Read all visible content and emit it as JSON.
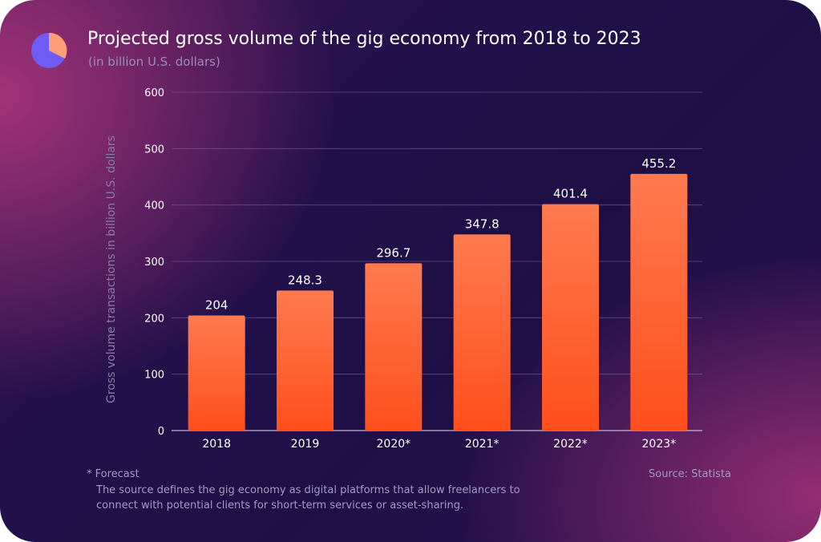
{
  "colors": {
    "bar_top": "#ff7a50",
    "bar_bottom": "#ff4f1c",
    "grid": "#7a6a98",
    "logo_main": "#6f5cf5",
    "logo_slice": "#ff9f7a"
  },
  "footnote": {
    "mark": "* Forecast",
    "text": "The source defines the gig economy as digital platforms that allow freelancers to connect with potential clients for short-term services or asset-sharing."
  },
  "source": "Source: Statista",
  "chart_data": {
    "type": "bar",
    "title": "Projected gross volume of the gig economy from 2018 to 2023",
    "subtitle": "(in billion U.S. dollars)",
    "xlabel": "",
    "ylabel": "Gross volume transactions in billion U.S. dollars",
    "categories": [
      "2018",
      "2019",
      "2020*",
      "2021*",
      "2022*",
      "2023*"
    ],
    "values": [
      204,
      248.3,
      296.7,
      347.8,
      401.4,
      455.2
    ],
    "value_labels": [
      "204",
      "248.3",
      "296.7",
      "347.8",
      "401.4",
      "455.2"
    ],
    "ylim": [
      0,
      600
    ],
    "yticks": [
      0,
      100,
      200,
      300,
      400,
      500,
      600
    ],
    "grid": true,
    "legend": "none"
  }
}
